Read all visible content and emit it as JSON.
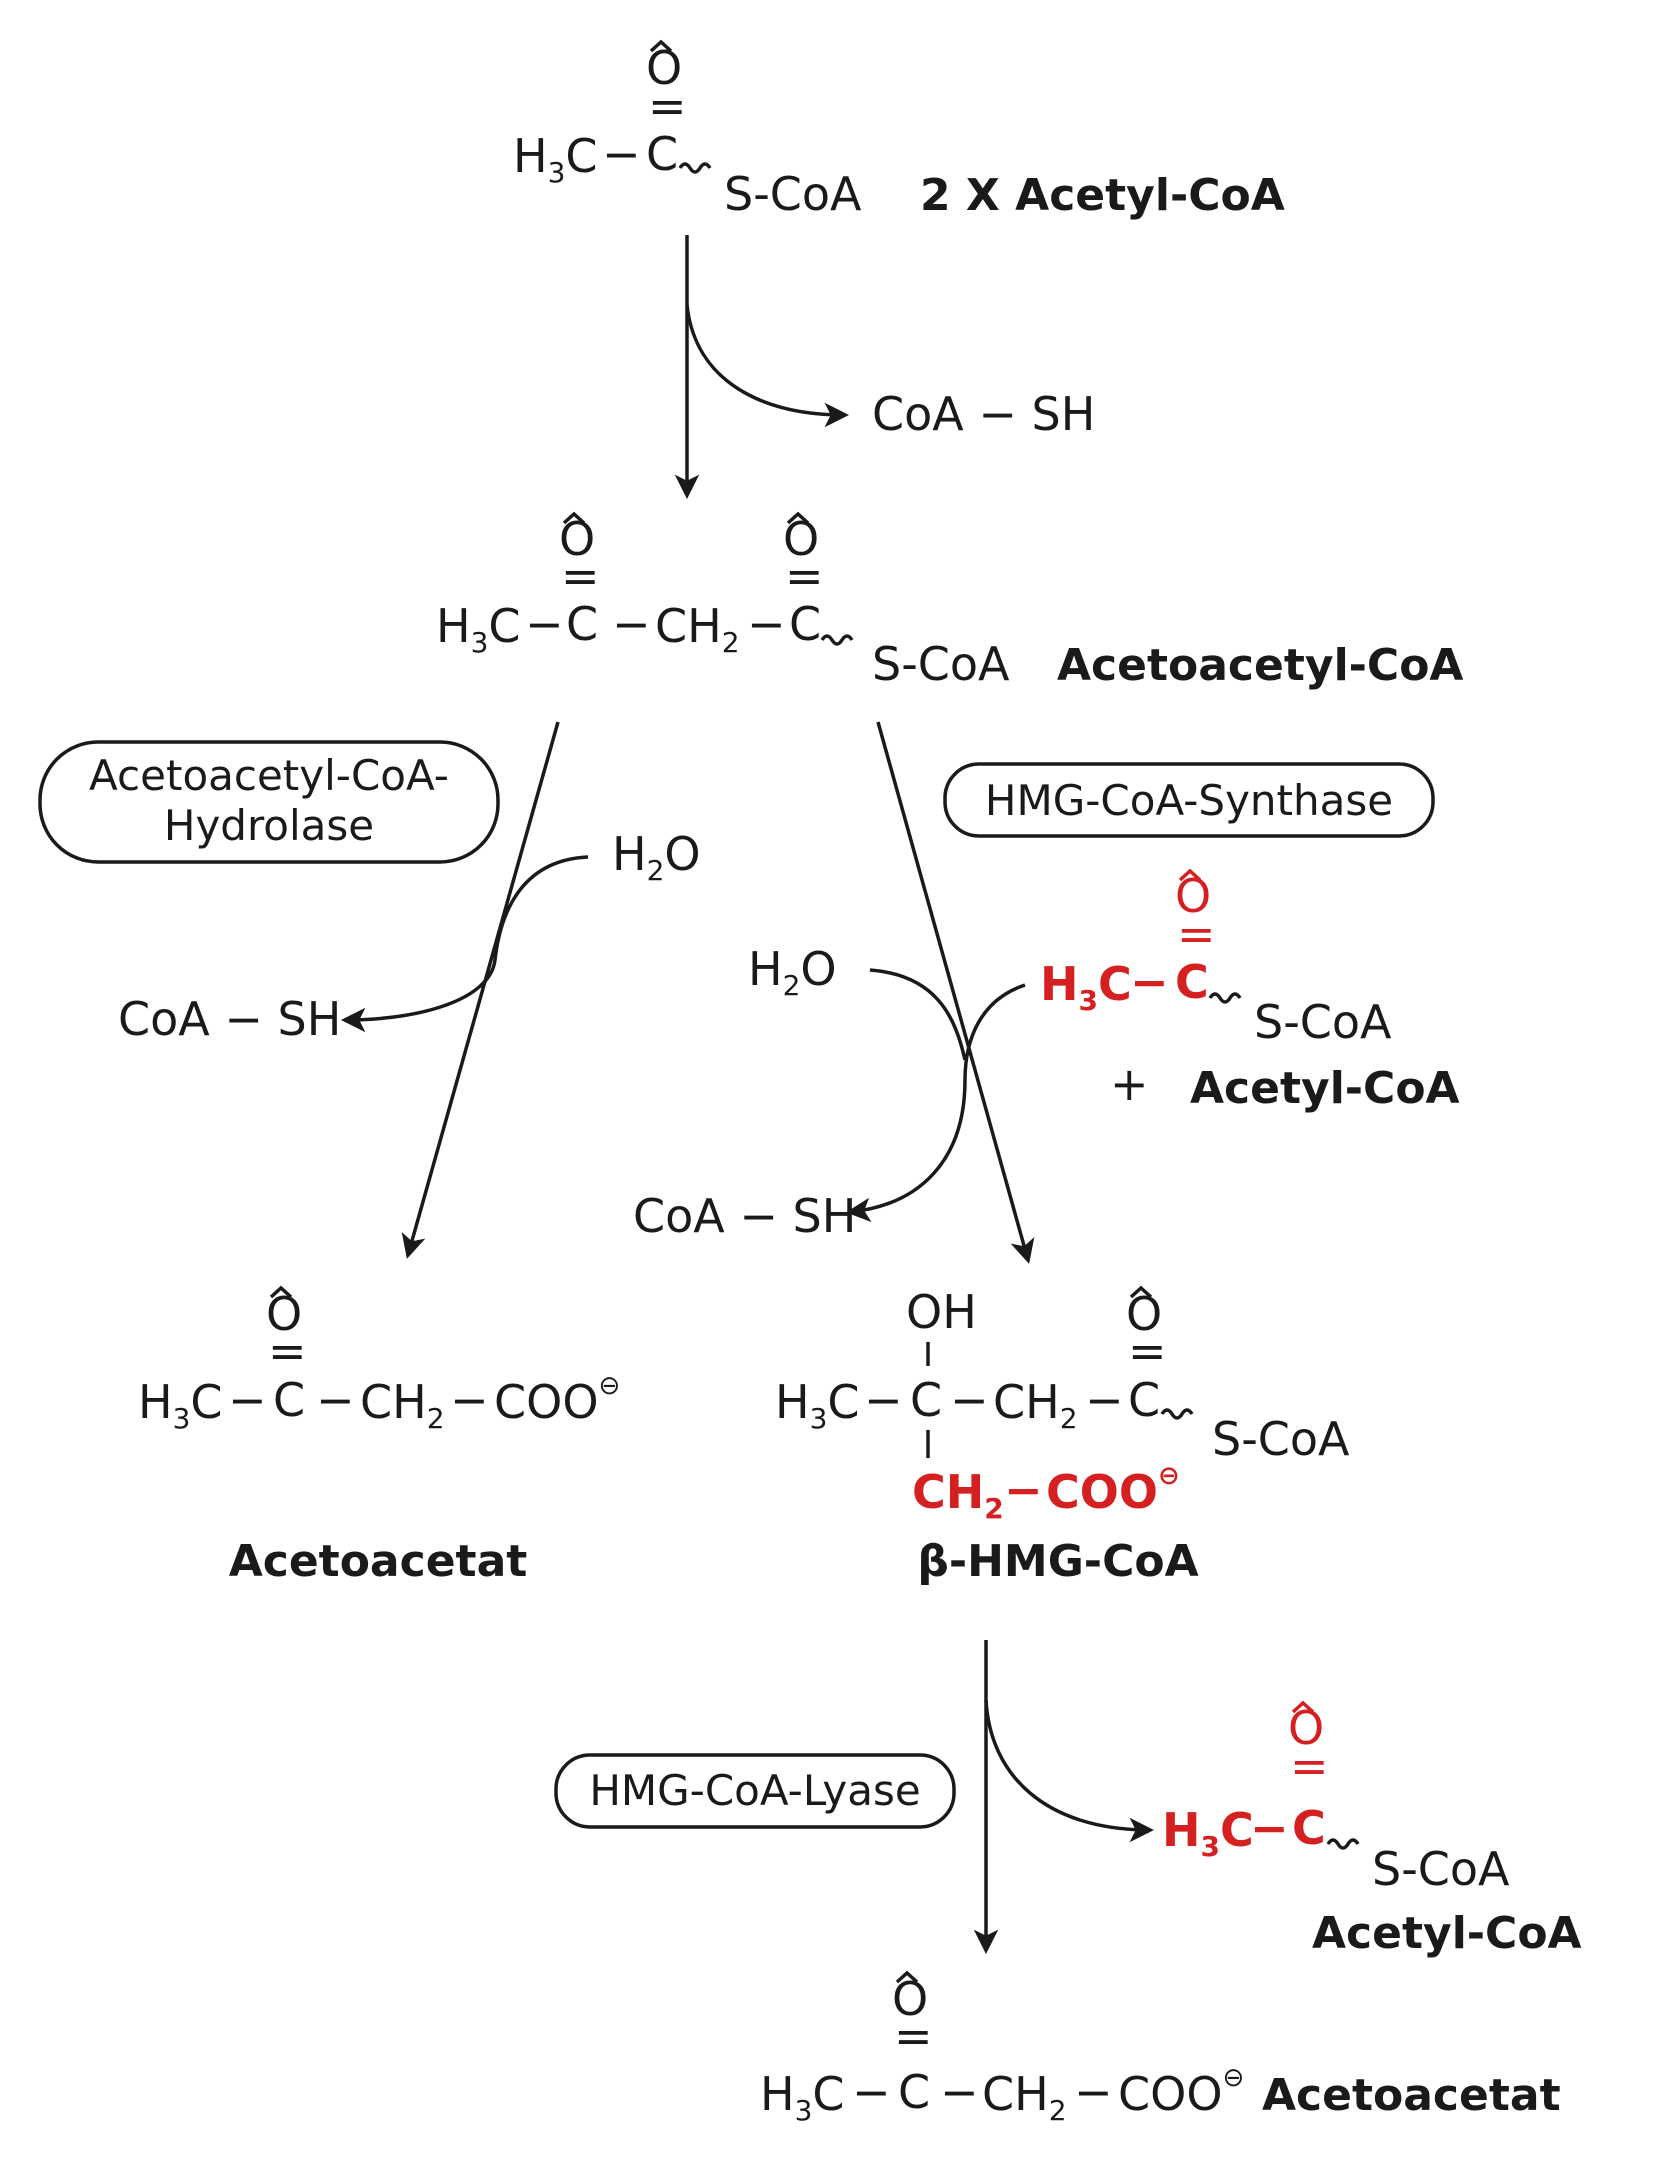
{
  "colors": {
    "ink": "#1a1a1a",
    "highlight": "#d42020",
    "background": "#ffffff"
  },
  "atoms": {
    "oxygen": "O",
    "double_bond": "=",
    "bond": "−",
    "h3c": "H",
    "three": "3",
    "c": "C",
    "ch2": "CH",
    "two": "2",
    "coo": "COO",
    "minus_charge": "⊖",
    "oh": "OH",
    "scoa": "S-CoA",
    "coash": "CoA − SH",
    "h2o_h": "H",
    "h2o_o": "O"
  },
  "compounds": {
    "acetyl_coa_top": "2 X Acetyl-CoA",
    "acetoacetyl_coa": "Acetoacetyl-CoA",
    "acetyl_coa_added": "Acetyl-CoA",
    "acetoacetat_left": "Acetoacetat",
    "hmg_coa": "β-HMG-CoA",
    "acetyl_coa_released": "Acetyl-CoA",
    "acetoacetat_bottom": "Acetoacetat"
  },
  "enzymes": {
    "hydrolase_line1": "Acetoacetyl-CoA-",
    "hydrolase_line2": "Hydrolase",
    "synthase": "HMG-CoA-Synthase",
    "lyase": "HMG-CoA-Lyase"
  },
  "plus_sign": "+"
}
